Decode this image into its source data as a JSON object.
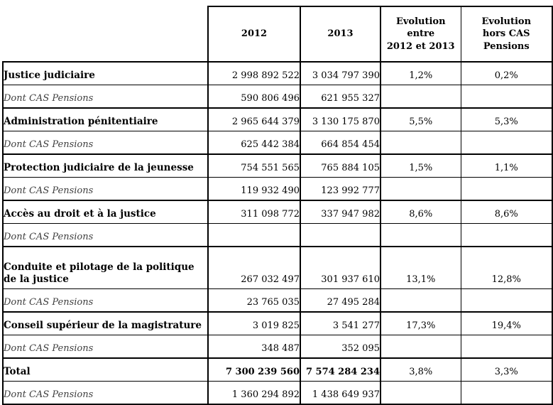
{
  "document": {
    "type": "budget-table",
    "language": "fr"
  },
  "colors": {
    "background": "#ffffff",
    "border": "#000000",
    "text": "#000000",
    "cas_text": "#3f3f3f"
  },
  "table": {
    "header": {
      "label_col": "",
      "y2012": "2012",
      "y2013": "2013",
      "evol": {
        "full": "Evolution entre 2012 et 2013",
        "line1": "Evolution",
        "line2": "entre",
        "line3": "2012 et 2013"
      },
      "evol_hors": {
        "full": "Evolution hors CAS Pensions",
        "line1": "Evolution",
        "line2": "hors CAS",
        "line3": "Pensions"
      }
    },
    "rows": [
      {
        "label": "Justice judiciaire",
        "v2012": "2 998 892 522",
        "v2013": "3 034 797 390",
        "evol": "1,2%",
        "evol_hors": "0,2%"
      },
      {
        "label": "Dont CAS Pensions",
        "v2012": "590 806 496",
        "v2013": "621 955 327",
        "evol": "",
        "evol_hors": ""
      },
      {
        "label": "Administration pénitentiaire",
        "v2012": "2 965 644 379",
        "v2013": "3 130 175 870",
        "evol": "5,5%",
        "evol_hors": "5,3%"
      },
      {
        "label": "Dont CAS Pensions",
        "v2012": "625 442 384",
        "v2013": "664 854 454",
        "evol": "",
        "evol_hors": ""
      },
      {
        "label": "Protection judiciaire de la jeunesse",
        "v2012": "754 551 565",
        "v2013": "765 884 105",
        "evol": "1,5%",
        "evol_hors": "1,1%"
      },
      {
        "label": "Dont CAS Pensions",
        "v2012": "119 932 490",
        "v2013": "123 992 777",
        "evol": "",
        "evol_hors": ""
      },
      {
        "label": "Accès au droit et à la justice",
        "v2012": "311 098 772",
        "v2013": "337 947 982",
        "evol": "8,6%",
        "evol_hors": "8,6%"
      },
      {
        "label": "Dont CAS Pensions",
        "v2012": "",
        "v2013": "",
        "evol": "",
        "evol_hors": ""
      },
      {
        "label": "Conduite et pilotage de la politique de la justice",
        "v2012": "267 032 497",
        "v2013": "301 937 610",
        "evol": "13,1%",
        "evol_hors": "12,8%"
      },
      {
        "label": "Dont CAS Pensions",
        "v2012": "23 765 035",
        "v2013": "27 495 284",
        "evol": "",
        "evol_hors": ""
      },
      {
        "label": "Conseil supérieur de la magistrature",
        "v2012": "3 019 825",
        "v2013": "3 541 277",
        "evol": "17,3%",
        "evol_hors": "19,4%"
      },
      {
        "label": "Dont CAS Pensions",
        "v2012": "348 487",
        "v2013": "352 095",
        "evol": "",
        "evol_hors": ""
      },
      {
        "label": "Total",
        "v2012": "7 300 239 560",
        "v2013": "7 574 284 234",
        "evol": "3,8%",
        "evol_hors": "3,3%"
      },
      {
        "label": "Dont CAS Pensions",
        "v2012": "1 360 294 892",
        "v2013": "1 438 649 937",
        "evol": "",
        "evol_hors": ""
      }
    ]
  }
}
